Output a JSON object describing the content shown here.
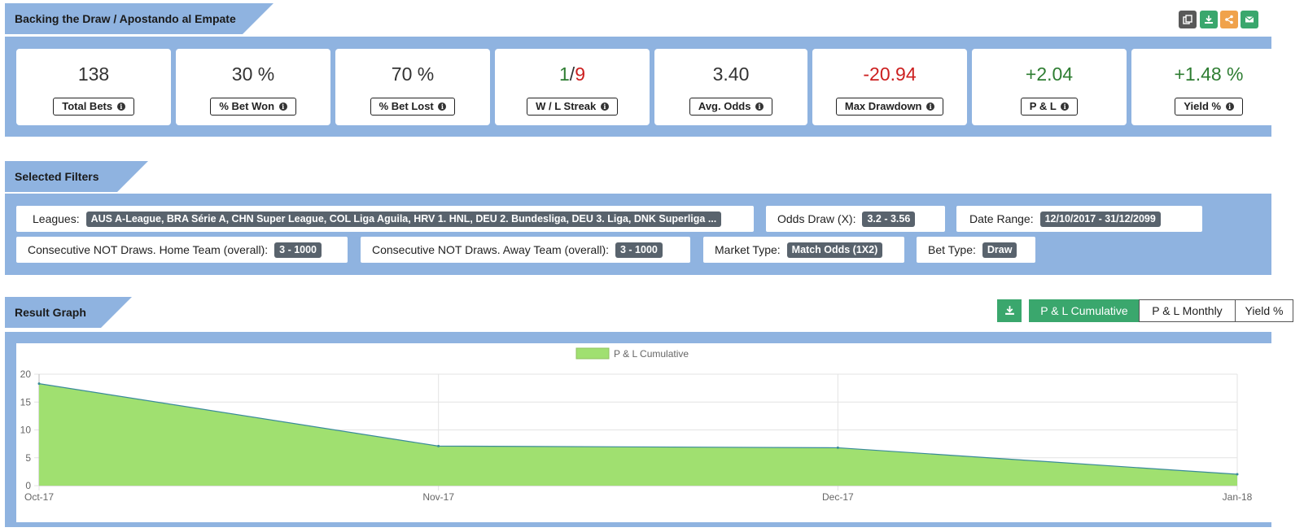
{
  "header": {
    "title": "Backing the Draw / Apostando al Empate"
  },
  "header_actions": [
    {
      "name": "copy-icon",
      "color": "#595959"
    },
    {
      "name": "download-icon",
      "color": "#3aa76d"
    },
    {
      "name": "share-icon",
      "color": "#f0a24b"
    },
    {
      "name": "envelope-icon",
      "color": "#3aa76d"
    }
  ],
  "stats": [
    {
      "value": "138",
      "label": "Total Bets",
      "color": "#333333"
    },
    {
      "value": "30 %",
      "label": "% Bet Won",
      "color": "#333333"
    },
    {
      "value": "70 %",
      "label": "% Bet Lost",
      "color": "#333333"
    },
    {
      "value_win": "1",
      "value_sep": "/",
      "value_loss": "9",
      "label": "W / L Streak"
    },
    {
      "value": "3.40",
      "label": "Avg. Odds",
      "color": "#333333"
    },
    {
      "value": "-20.94",
      "label": "Max Drawdown",
      "color": "#cc1f1f"
    },
    {
      "value": "+2.04",
      "label": "P & L",
      "color": "#2e7d32"
    },
    {
      "value": "+1.48 %",
      "label": "Yield %",
      "color": "#2e7d32"
    }
  ],
  "filters_header": {
    "title": "Selected Filters"
  },
  "filters": [
    {
      "label": "Leagues:",
      "value": "AUS A-League, BRA Série A, CHN Super League, COL Liga Aguila, HRV 1. HNL, DEU 2. Bundesliga, DEU 3. Liga, DNK Superliga ..."
    },
    {
      "label": "Odds Draw (X):",
      "value": "3.2 - 3.56"
    },
    {
      "label": "Date Range:",
      "value": "12/10/2017 - 31/12/2099"
    },
    {
      "label": "Consecutive NOT Draws. Home Team (overall):",
      "value": "3 - 1000"
    },
    {
      "label": "Consecutive NOT Draws. Away Team (overall):",
      "value": "3 - 1000"
    },
    {
      "label": "Market Type:",
      "value": "Match Odds (1X2)"
    },
    {
      "label": "Bet Type:",
      "value": "Draw"
    }
  ],
  "graph_header": {
    "title": "Result Graph"
  },
  "graph_buttons": {
    "cumulative": "P & L Cumulative",
    "monthly": "P & L Monthly",
    "yield": "Yield %",
    "active": "cumulative"
  },
  "chart_data": {
    "type": "area",
    "series": [
      {
        "name": "P & L Cumulative",
        "color": "#a0e070",
        "values": [
          18.3,
          7.1,
          6.8,
          2.04
        ]
      }
    ],
    "x": [
      "Oct-17",
      "Nov-17",
      "Dec-17",
      "Jan-18"
    ],
    "ylim": [
      0,
      20
    ],
    "yticks": [
      0,
      5,
      10,
      15,
      20
    ],
    "grid": true,
    "legend": "top-center"
  }
}
